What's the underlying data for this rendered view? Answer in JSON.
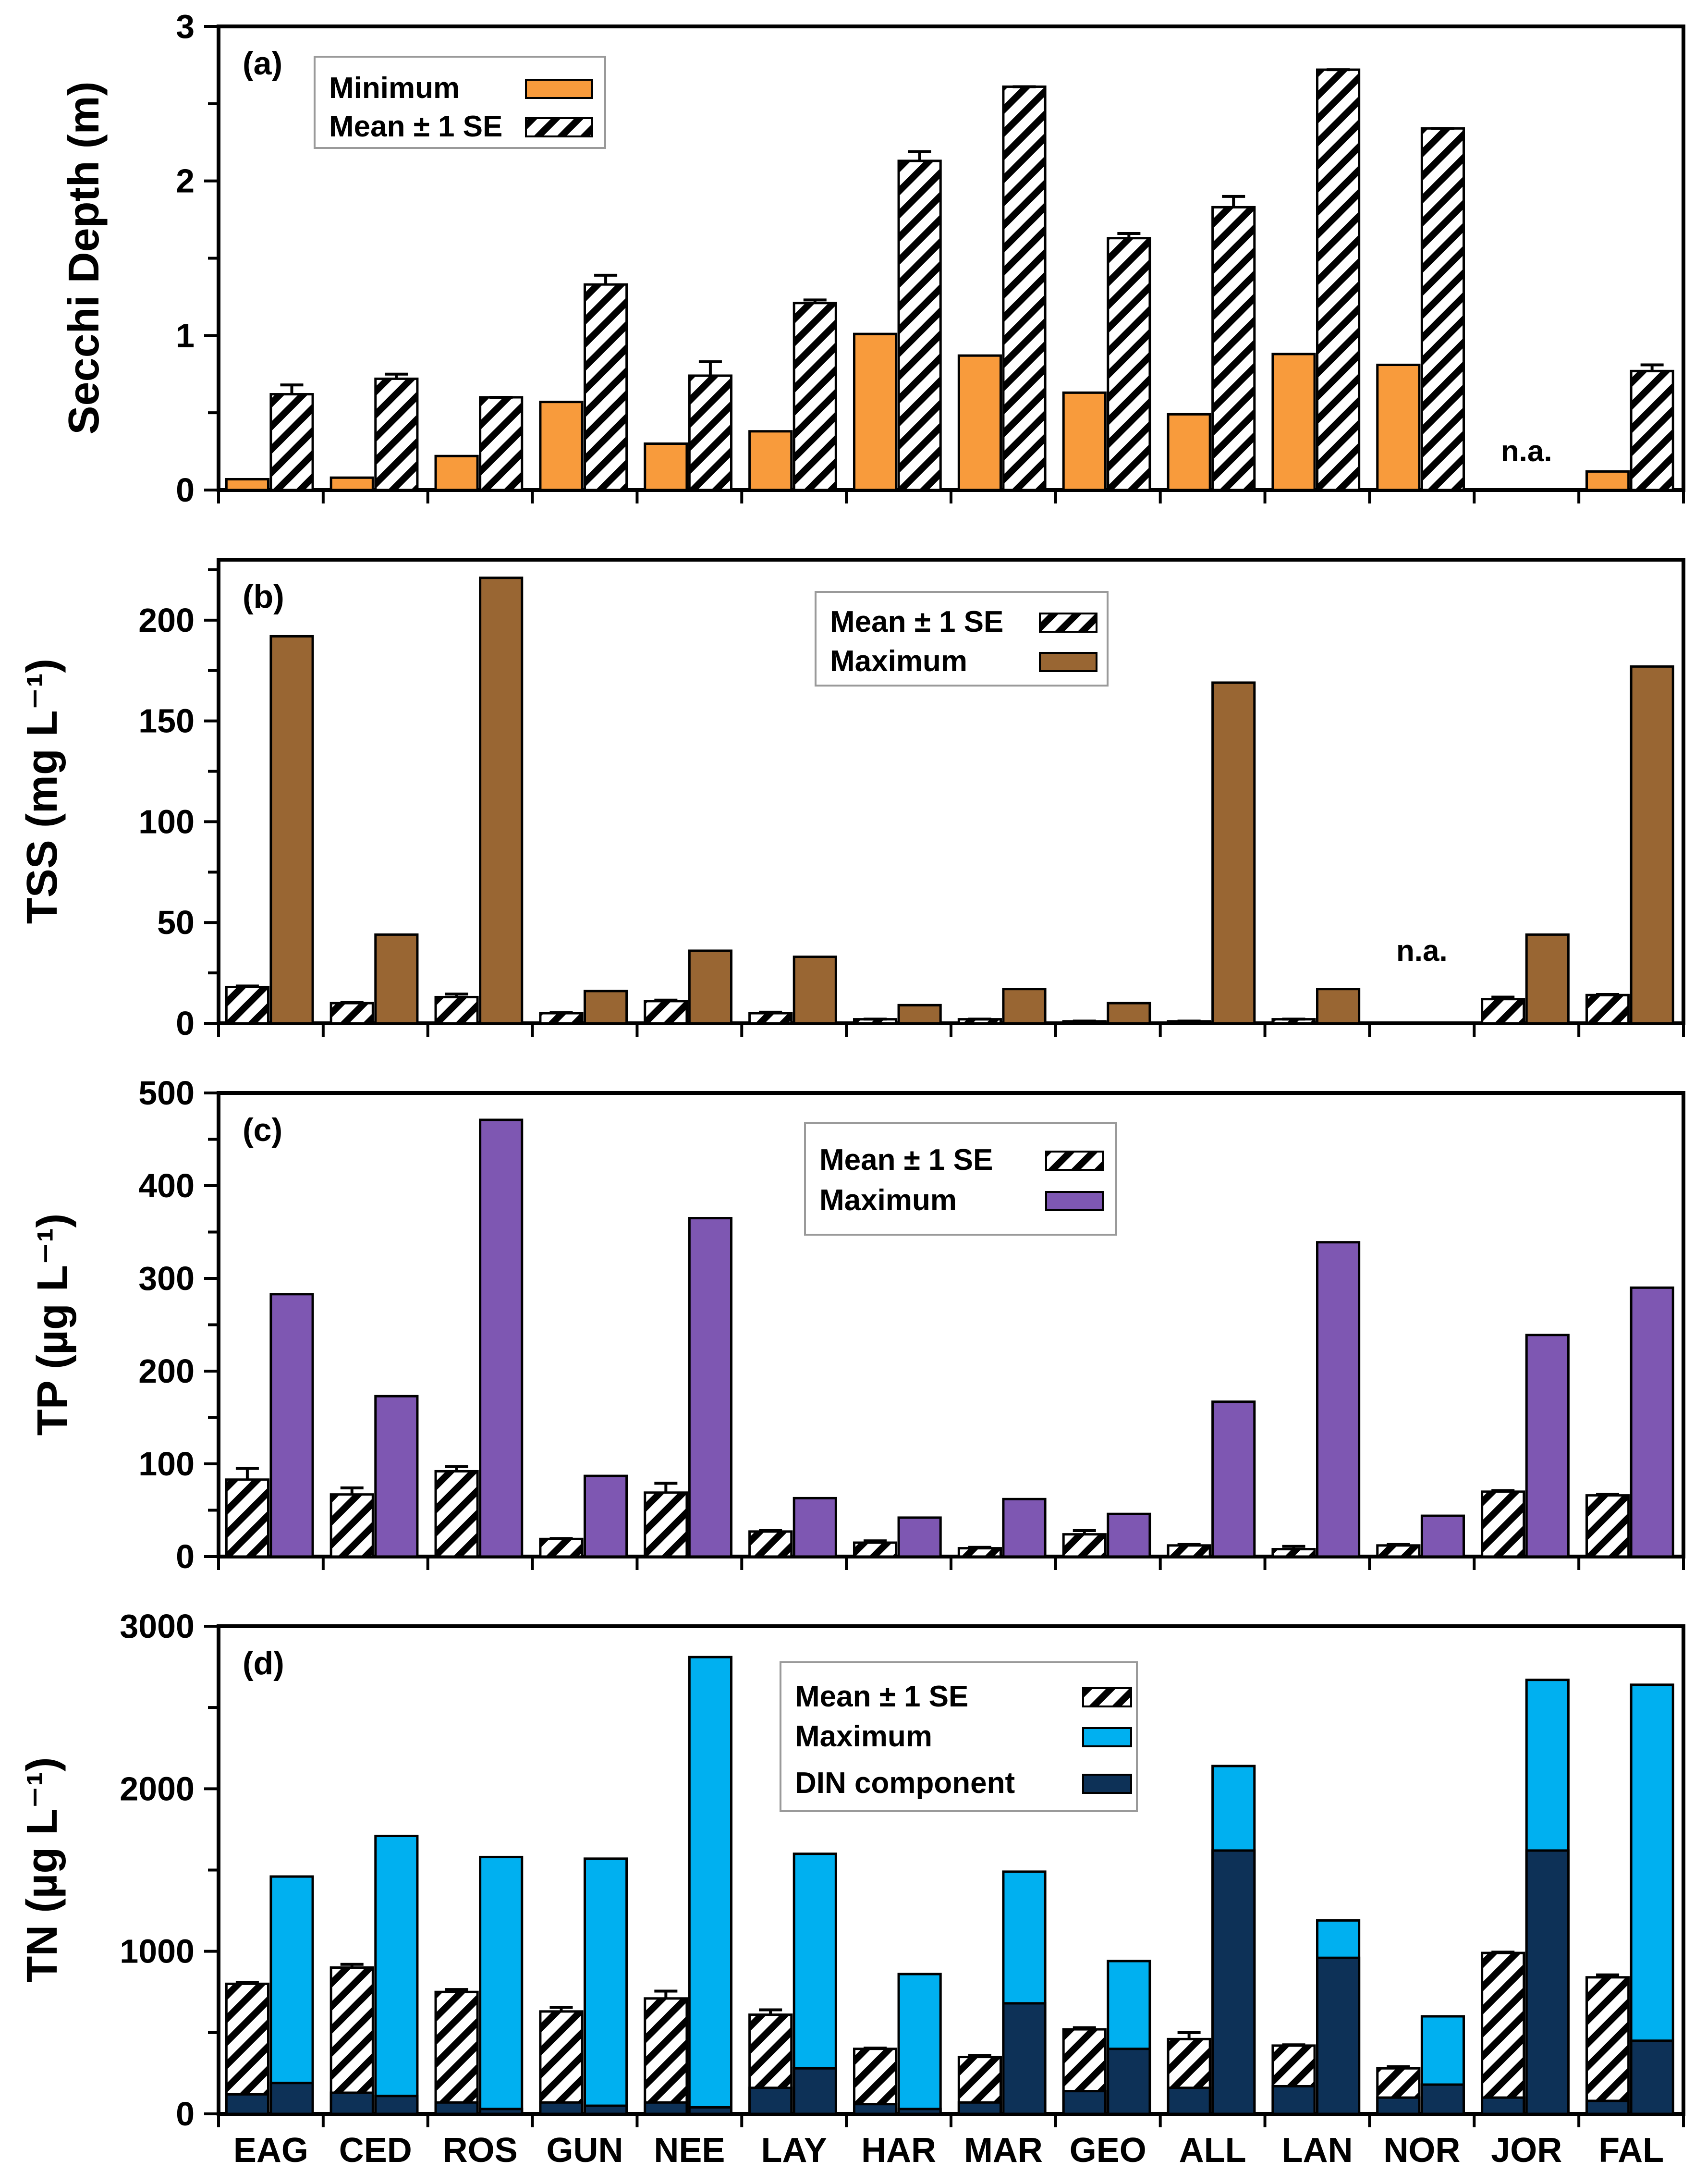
{
  "categories": [
    "EAG",
    "CED",
    "ROS",
    "GUN",
    "NEE",
    "LAY",
    "HAR",
    "MAR",
    "GEO",
    "ALL",
    "LAN",
    "NOR",
    "JOR",
    "FAL"
  ],
  "colors": {
    "minimum": "#F89B3C",
    "tss_max": "#996633",
    "tp_max": "#7E57B2",
    "tn_max": "#00B0F0",
    "din_dark": "#0D3157",
    "axis": "#000000",
    "hatch_bg": "#ffffff",
    "hatch_line": "#000000"
  },
  "chart_data": [
    {
      "type": "bar",
      "panel": "(a)",
      "ylabel": "Secchi Depth (m)",
      "ylim": [
        0,
        3
      ],
      "yticks": [
        "0",
        "1",
        "2",
        "3"
      ],
      "legend": [
        {
          "label": "Minimum",
          "style": "minimum"
        },
        {
          "label": "Mean ± 1 SE",
          "style": "hatch"
        }
      ],
      "na_label": "n.a.",
      "na_category": "JOR",
      "series": [
        {
          "name": "Minimum",
          "values": [
            0.07,
            0.08,
            0.22,
            0.57,
            0.3,
            0.38,
            1.01,
            0.87,
            0.63,
            0.49,
            0.88,
            0.81,
            null,
            0.12
          ]
        },
        {
          "name": "Mean",
          "values": [
            0.62,
            0.72,
            0.6,
            1.33,
            0.74,
            1.21,
            2.13,
            2.61,
            1.63,
            1.83,
            2.72,
            2.34,
            null,
            0.77
          ],
          "se": [
            0.06,
            0.03,
            0.0,
            0.06,
            0.09,
            0.02,
            0.06,
            0.0,
            0.03,
            0.07,
            0.0,
            0.0,
            null,
            0.04
          ]
        }
      ]
    },
    {
      "type": "bar",
      "panel": "(b)",
      "ylabel": "TSS (mg L⁻¹)",
      "ylim": [
        0,
        230
      ],
      "yticks": [
        "0",
        "50",
        "100",
        "150",
        "200"
      ],
      "legend": [
        {
          "label": "Mean ± 1 SE",
          "style": "hatch"
        },
        {
          "label": "Maximum",
          "style": "tss_max"
        }
      ],
      "na_label": "n.a.",
      "na_category": "NOR",
      "series": [
        {
          "name": "Mean",
          "values": [
            18,
            10,
            13,
            5,
            11,
            5,
            2,
            2,
            1,
            1,
            2,
            null,
            12,
            14
          ],
          "se": [
            0.5,
            0.3,
            1.5,
            0.3,
            0.5,
            0.5,
            0.1,
            0.1,
            0.1,
            0.1,
            0.1,
            null,
            1.0,
            0.3
          ]
        },
        {
          "name": "Maximum",
          "values": [
            192,
            44,
            221,
            16,
            36,
            33,
            9,
            17,
            10,
            169,
            17,
            null,
            44,
            177
          ]
        }
      ]
    },
    {
      "type": "bar",
      "panel": "(c)",
      "ylabel": "TP (µg L⁻¹)",
      "ylim": [
        0,
        500
      ],
      "yticks": [
        "0",
        "100",
        "200",
        "300",
        "400",
        "500"
      ],
      "legend": [
        {
          "label": "Mean ± 1 SE",
          "style": "hatch"
        },
        {
          "label": "Maximum",
          "style": "tp_max"
        }
      ],
      "series": [
        {
          "name": "Mean",
          "values": [
            83,
            67,
            92,
            19,
            69,
            27,
            15,
            9,
            24,
            12,
            8,
            12,
            70,
            66
          ],
          "se": [
            12,
            7,
            5,
            0.5,
            10,
            1,
            2,
            1,
            4,
            1,
            3,
            1,
            1,
            1
          ]
        },
        {
          "name": "Maximum",
          "values": [
            283,
            173,
            471,
            87,
            365,
            63,
            42,
            62,
            46,
            167,
            339,
            44,
            239,
            290
          ]
        }
      ]
    },
    {
      "type": "bar",
      "panel": "(d)",
      "ylabel": "TN (µg L⁻¹)",
      "ylim": [
        0,
        3000
      ],
      "yticks": [
        "0",
        "1000",
        "2000",
        "3000"
      ],
      "legend": [
        {
          "label": "Mean ± 1 SE",
          "style": "hatch"
        },
        {
          "label": "Maximum",
          "style": "tn_max"
        },
        {
          "label": "DIN component",
          "style": "din_dark"
        }
      ],
      "series": [
        {
          "name": "Mean",
          "values": [
            800,
            900,
            750,
            630,
            710,
            610,
            400,
            350,
            520,
            460,
            420,
            280,
            990,
            840
          ],
          "se": [
            10,
            20,
            15,
            25,
            45,
            30,
            5,
            10,
            10,
            40,
            5,
            10,
            5,
            15
          ]
        },
        {
          "name": "Mean DIN component",
          "values": [
            120,
            130,
            70,
            70,
            70,
            160,
            60,
            70,
            140,
            160,
            170,
            100,
            100,
            80
          ]
        },
        {
          "name": "Maximum",
          "values": [
            1460,
            1710,
            1580,
            1570,
            2810,
            1600,
            860,
            1490,
            940,
            2140,
            1190,
            600,
            2670,
            2640
          ]
        },
        {
          "name": "Maximum DIN component",
          "values": [
            190,
            110,
            30,
            50,
            40,
            280,
            30,
            680,
            400,
            1620,
            960,
            180,
            1620,
            450
          ]
        }
      ]
    }
  ]
}
